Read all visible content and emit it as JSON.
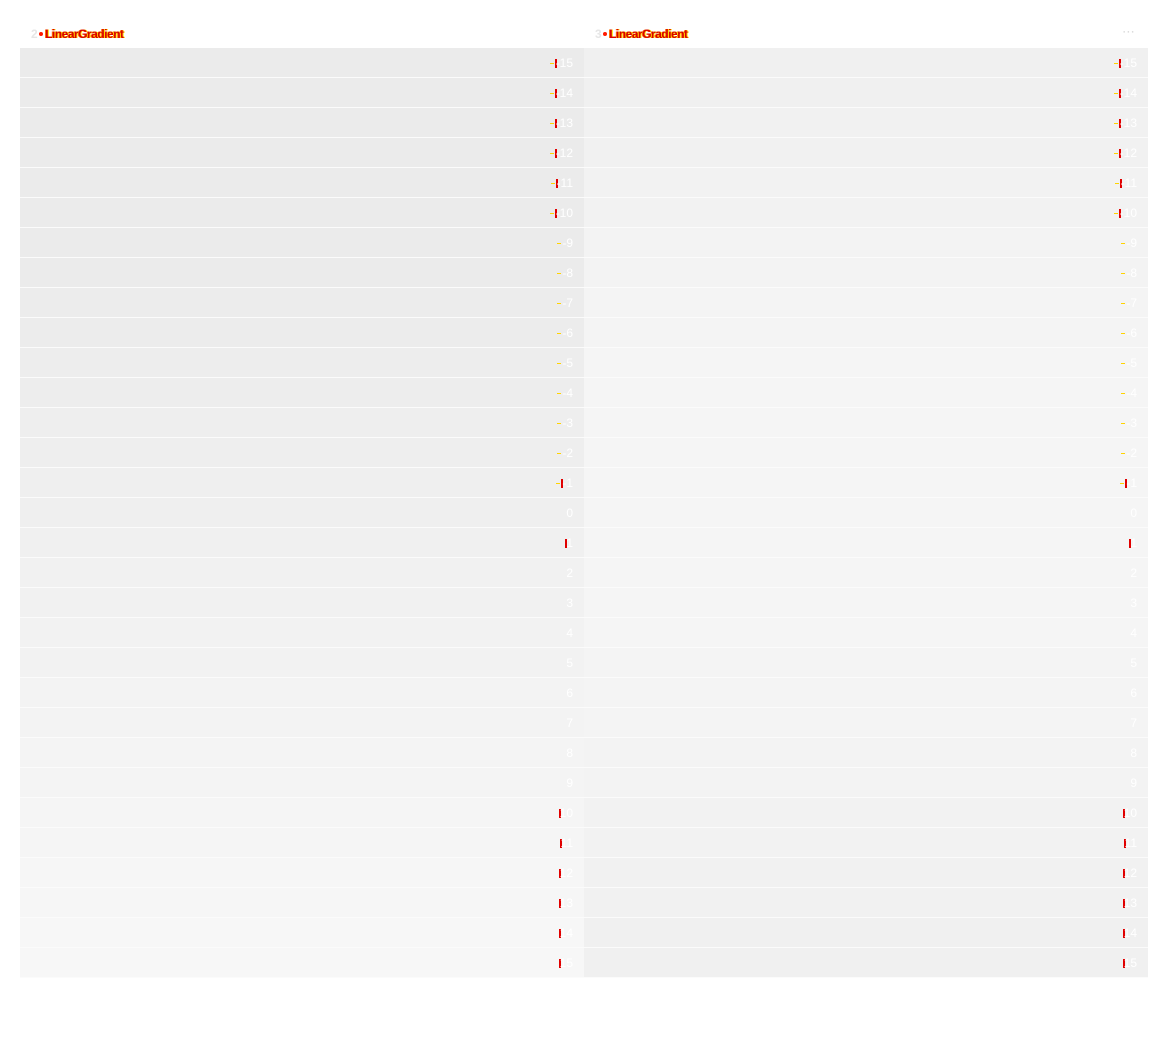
{
  "panels": [
    {
      "id": "left",
      "title_number": "2",
      "title_text": "LinearGradient",
      "show_more": false,
      "values": [
        "-15",
        "-14",
        "-13",
        "-12",
        "-11",
        "-10",
        "-9",
        "-8",
        "-7",
        "-6",
        "-5",
        "-4",
        "-3",
        "-2",
        "-1",
        "0",
        "1",
        "2",
        "3",
        "4",
        "5",
        "6",
        "7",
        "8",
        "9",
        "10",
        "11",
        "12",
        "13",
        "14",
        "15"
      ],
      "row_colors": [
        "#ebebeb",
        "#ebebeb",
        "#ebebeb",
        "#ebebeb",
        "#ebebeb",
        "#ebebeb",
        "#ebebeb",
        "#ebebeb",
        "#ececec",
        "#ececec",
        "#ededed",
        "#ededed",
        "#eeeeee",
        "#eeeeee",
        "#efefef",
        "#efefef",
        "#f0f0f0",
        "#f1f1f1",
        "#f1f1f1",
        "#f2f2f2",
        "#f2f2f2",
        "#f3f3f3",
        "#f3f3f3",
        "#f4f4f4",
        "#f4f4f4",
        "#f5f5f5",
        "#f5f5f5",
        "#f6f6f6",
        "#f6f6f6",
        "#f7f7f7",
        "#f7f7f7"
      ]
    },
    {
      "id": "right",
      "title_number": "3",
      "title_text": "LinearGradient",
      "show_more": true,
      "more_icon": "more-dots-icon",
      "values": [
        "-15",
        "-14",
        "-13",
        "-12",
        "-11",
        "-10",
        "-9",
        "-8",
        "-7",
        "-6",
        "-5",
        "-4",
        "-3",
        "-2",
        "-1",
        "0",
        "1",
        "2",
        "3",
        "4",
        "5",
        "6",
        "7",
        "8",
        "9",
        "10",
        "11",
        "12",
        "13",
        "14",
        "15"
      ],
      "row_colors": [
        "#f0f0f0",
        "#f0f0f0",
        "#f1f1f1",
        "#f1f1f1",
        "#f2f2f2",
        "#f2f2f2",
        "#f3f3f3",
        "#f3f3f3",
        "#f4f4f4",
        "#f4f4f4",
        "#f5f5f5",
        "#f5f5f5",
        "#f5f5f5",
        "#f5f5f5",
        "#f5f5f5",
        "#f5f5f5",
        "#f5f5f5",
        "#f5f5f5",
        "#f5f5f5",
        "#f5f5f5",
        "#f4f4f4",
        "#f4f4f4",
        "#f4f4f4",
        "#f3f3f3",
        "#f3f3f3",
        "#f2f2f2",
        "#f2f2f2",
        "#f1f1f1",
        "#f1f1f1",
        "#f0f0f0",
        "#f0f0f0"
      ]
    }
  ],
  "colors": {
    "title_number": "#e6e6e6",
    "title_text": "#d80000",
    "value_text": "#ffffff"
  }
}
